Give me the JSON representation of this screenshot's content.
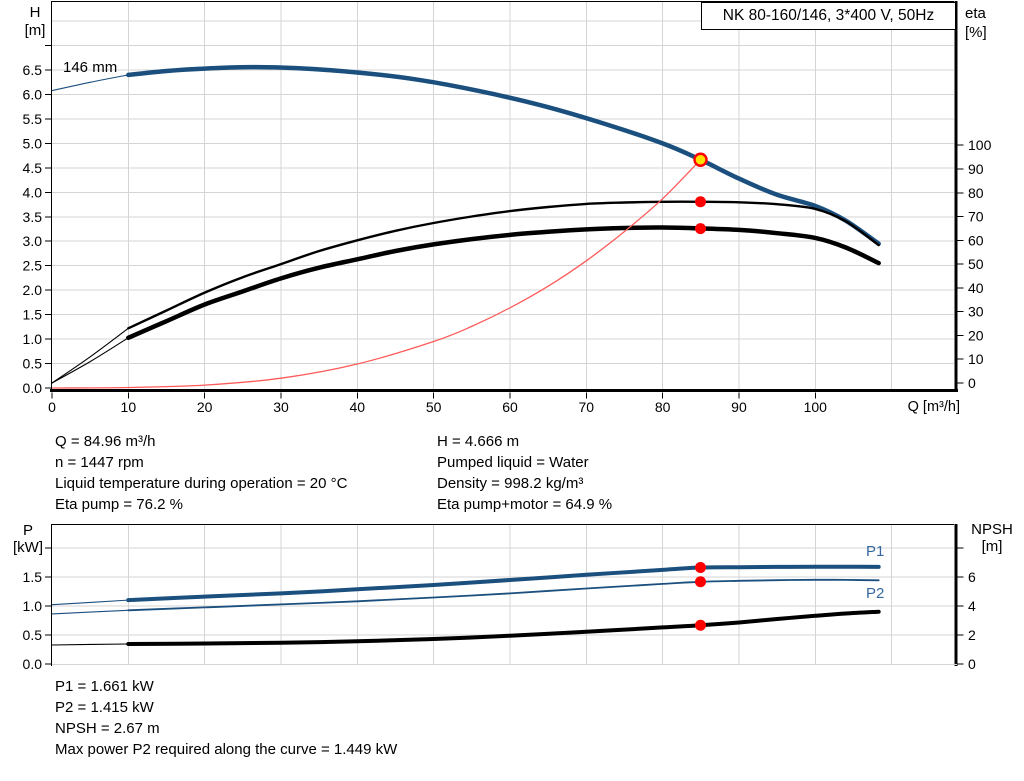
{
  "colors": {
    "curve_blue": "#1b4f7e",
    "label_blue": "#35689e",
    "curve_black": "#000000",
    "system_red": "#ff5a5a",
    "dot_red": "#ff0000",
    "duty_yellow": "#ffe100",
    "grid": "#d4d4d4",
    "axis": "#000000",
    "text": "#000000"
  },
  "info_top": {
    "left": [
      "Q = 84.96 m³/h",
      "n = 1447 rpm",
      "Liquid temperature during operation = 20 °C",
      "Eta pump = 76.2 %"
    ],
    "right": [
      "H = 4.666 m",
      "Pumped liquid = Water",
      "Density = 998.2 kg/m³",
      "Eta pump+motor = 64.9 %"
    ]
  },
  "info_bottom": [
    "P1 = 1.661 kW",
    "P2 = 1.415 kW",
    "NPSH = 2.67 m",
    "Max power P2 required along the curve = 1.449 kW"
  ],
  "chart_data": [
    {
      "id": "qh",
      "type": "line",
      "title": "NK 80-160/146, 3*400 V, 50Hz",
      "x_axis": {
        "label": "Q [m³/h]",
        "min": 0,
        "max": 118.3,
        "tick_values": [
          0,
          10,
          20,
          30,
          40,
          50,
          60,
          70,
          80,
          90,
          100
        ],
        "tick_labels": [
          "0",
          "10",
          "20",
          "30",
          "40",
          "50",
          "60",
          "70",
          "80",
          "90",
          "100"
        ],
        "grid_values": [
          10,
          20,
          30,
          40,
          50,
          60,
          70,
          80,
          90,
          100,
          110
        ]
      },
      "y_left": {
        "label": [
          "H",
          "[m]"
        ],
        "min": 0,
        "max": 7.9,
        "tick_values": [
          0,
          0.5,
          1,
          1.5,
          2,
          2.5,
          3,
          3.5,
          4,
          4.5,
          5,
          5.5,
          6,
          6.5,
          7
        ],
        "tick_labels": [
          "0.0",
          "0.5",
          "1.0",
          "1.5",
          "2.0",
          "2.5",
          "3.0",
          "3.5",
          "4.0",
          "4.5",
          "5.0",
          "5.5",
          "6.0",
          "6.5",
          ""
        ],
        "grid_values": [
          0.5,
          1,
          1.5,
          2,
          2.5,
          3,
          3.5,
          4,
          4.5,
          5,
          5.5,
          6,
          6.5,
          7,
          7.5
        ]
      },
      "y_right": {
        "label": [
          "eta",
          "[%]"
        ],
        "min": 0,
        "max": 100,
        "tick_values": [
          0,
          10,
          20,
          30,
          40,
          50,
          60,
          70,
          80,
          90,
          100
        ],
        "tick_labels": [
          "0",
          "10",
          "20",
          "30",
          "40",
          "50",
          "60",
          "70",
          "80",
          "90",
          "100"
        ]
      },
      "series": [
        {
          "id": "head-146mm",
          "label": "146 mm",
          "axis": "left",
          "color": "curve_blue",
          "width": 4.5,
          "thin_until": 10,
          "points": [
            [
              0,
              6.08
            ],
            [
              5,
              6.25
            ],
            [
              10,
              6.4
            ],
            [
              15,
              6.48
            ],
            [
              20,
              6.53
            ],
            [
              26,
              6.56
            ],
            [
              32,
              6.54
            ],
            [
              40,
              6.45
            ],
            [
              48,
              6.3
            ],
            [
              56,
              6.07
            ],
            [
              64,
              5.78
            ],
            [
              72,
              5.42
            ],
            [
              80,
              5.0
            ],
            [
              84.96,
              4.666
            ],
            [
              90,
              4.28
            ],
            [
              95,
              3.95
            ],
            [
              100,
              3.72
            ],
            [
              104,
              3.42
            ],
            [
              108.3,
              2.95
            ]
          ]
        },
        {
          "id": "eta-pump",
          "axis": "right",
          "color": "curve_black",
          "width": 2.4,
          "thin_until": 10,
          "points": [
            [
              0,
              0
            ],
            [
              5,
              11
            ],
            [
              10,
              23
            ],
            [
              15,
              30.5
            ],
            [
              20,
              38
            ],
            [
              25,
              44.5
            ],
            [
              30,
              50
            ],
            [
              35,
              55.5
            ],
            [
              40,
              60
            ],
            [
              45,
              64
            ],
            [
              50,
              67.3
            ],
            [
              55,
              70
            ],
            [
              60,
              72.3
            ],
            [
              65,
              74
            ],
            [
              70,
              75.3
            ],
            [
              75,
              75.9
            ],
            [
              80,
              76.2
            ],
            [
              84.96,
              76.2
            ],
            [
              90,
              76
            ],
            [
              95,
              75.2
            ],
            [
              100,
              73.2
            ],
            [
              104,
              68
            ],
            [
              108.3,
              58
            ]
          ]
        },
        {
          "id": "eta-pump-motor",
          "axis": "right",
          "color": "curve_black",
          "width": 4.5,
          "thin_until": 10,
          "points": [
            [
              0,
              0
            ],
            [
              5,
              9
            ],
            [
              10,
              19
            ],
            [
              15,
              26
            ],
            [
              20,
              33
            ],
            [
              25,
              38.5
            ],
            [
              30,
              44
            ],
            [
              35,
              48.5
            ],
            [
              40,
              52
            ],
            [
              45,
              55.5
            ],
            [
              50,
              58.3
            ],
            [
              55,
              60.5
            ],
            [
              60,
              62.3
            ],
            [
              65,
              63.6
            ],
            [
              70,
              64.6
            ],
            [
              75,
              65.2
            ],
            [
              80,
              65.4
            ],
            [
              85,
              65
            ],
            [
              90,
              64.4
            ],
            [
              95,
              63
            ],
            [
              100,
              61
            ],
            [
              104,
              57
            ],
            [
              108.3,
              50.4
            ]
          ]
        },
        {
          "id": "system-curve",
          "axis": "left",
          "color": "system_red",
          "width": 1.3,
          "points": [
            [
              0,
              0
            ],
            [
              10,
              0.01
            ],
            [
              20,
              0.06
            ],
            [
              30,
              0.2
            ],
            [
              40,
              0.49
            ],
            [
              50,
              0.95
            ],
            [
              55,
              1.26
            ],
            [
              60,
              1.64
            ],
            [
              65,
              2.08
            ],
            [
              70,
              2.6
            ],
            [
              75,
              3.2
            ],
            [
              80,
              3.87
            ],
            [
              84.96,
              4.666
            ]
          ]
        }
      ],
      "markers": [
        {
          "name": "duty-point",
          "q": 84.96,
          "value": 4.666,
          "axis": "left",
          "style": "duty"
        },
        {
          "name": "eta-pump-op",
          "q": 84.96,
          "value": 76.2,
          "axis": "right",
          "style": "dot"
        },
        {
          "name": "eta-pump-motor-op",
          "q": 84.96,
          "value": 64.9,
          "axis": "right",
          "style": "dot"
        }
      ]
    },
    {
      "id": "power",
      "type": "line",
      "x_axis": {
        "label": "",
        "min": 0,
        "max": 118.3,
        "tick_values": [],
        "tick_labels": [],
        "grid_values": [
          10,
          20,
          30,
          40,
          50,
          60,
          70,
          80,
          90,
          100,
          110
        ]
      },
      "y_left": {
        "label": [
          "P",
          "[kW]"
        ],
        "min": 0,
        "max": 2.41,
        "tick_values": [
          0,
          0.5,
          1,
          1.5,
          2
        ],
        "tick_labels": [
          "0.0",
          "0.5",
          "1.0",
          "1.5",
          ""
        ],
        "grid_values": [
          0.5,
          1,
          1.5,
          2
        ]
      },
      "y_right": {
        "label": [
          "NPSH",
          "[m]"
        ],
        "min": 0,
        "max": 9.65,
        "tick_values": [
          0,
          2,
          4,
          6,
          8
        ],
        "tick_labels": [
          "0",
          "2",
          "4",
          "6",
          ""
        ]
      },
      "series": [
        {
          "id": "p1",
          "label": "P1",
          "axis": "left",
          "color": "curve_blue",
          "width": 4,
          "thin_until": 10,
          "points": [
            [
              0,
              1.02
            ],
            [
              10,
              1.1
            ],
            [
              20,
              1.16
            ],
            [
              30,
              1.215
            ],
            [
              40,
              1.285
            ],
            [
              50,
              1.36
            ],
            [
              60,
              1.445
            ],
            [
              70,
              1.535
            ],
            [
              80,
              1.62
            ],
            [
              84.96,
              1.661
            ],
            [
              90,
              1.666
            ],
            [
              95,
              1.671
            ],
            [
              100,
              1.673
            ],
            [
              104,
              1.673
            ],
            [
              108.3,
              1.672
            ]
          ]
        },
        {
          "id": "p2",
          "label": "P2",
          "axis": "left",
          "color": "curve_blue",
          "width": 1.8,
          "thin_until": 10,
          "points": [
            [
              0,
              0.862
            ],
            [
              10,
              0.925
            ],
            [
              20,
              0.975
            ],
            [
              30,
              1.025
            ],
            [
              40,
              1.08
            ],
            [
              50,
              1.145
            ],
            [
              60,
              1.215
            ],
            [
              70,
              1.3
            ],
            [
              80,
              1.378
            ],
            [
              84.96,
              1.415
            ],
            [
              90,
              1.432
            ],
            [
              95,
              1.443
            ],
            [
              100,
              1.449
            ],
            [
              104,
              1.447
            ],
            [
              108.3,
              1.44
            ]
          ]
        },
        {
          "id": "npsh",
          "axis": "right",
          "color": "curve_black",
          "width": 4,
          "thin_until": 10,
          "points": [
            [
              0,
              1.31
            ],
            [
              10,
              1.38
            ],
            [
              20,
              1.41
            ],
            [
              30,
              1.46
            ],
            [
              40,
              1.56
            ],
            [
              50,
              1.72
            ],
            [
              60,
              1.95
            ],
            [
              70,
              2.22
            ],
            [
              80,
              2.52
            ],
            [
              84.96,
              2.67
            ],
            [
              90,
              2.86
            ],
            [
              95,
              3.1
            ],
            [
              100,
              3.32
            ],
            [
              104,
              3.48
            ],
            [
              108.3,
              3.6
            ]
          ]
        }
      ],
      "markers": [
        {
          "name": "p1-op",
          "q": 84.96,
          "value": 1.661,
          "axis": "left",
          "style": "dot"
        },
        {
          "name": "p2-op",
          "q": 84.96,
          "value": 1.415,
          "axis": "left",
          "style": "dot"
        },
        {
          "name": "npsh-op",
          "q": 84.96,
          "value": 2.67,
          "axis": "right",
          "style": "dot"
        }
      ]
    }
  ]
}
